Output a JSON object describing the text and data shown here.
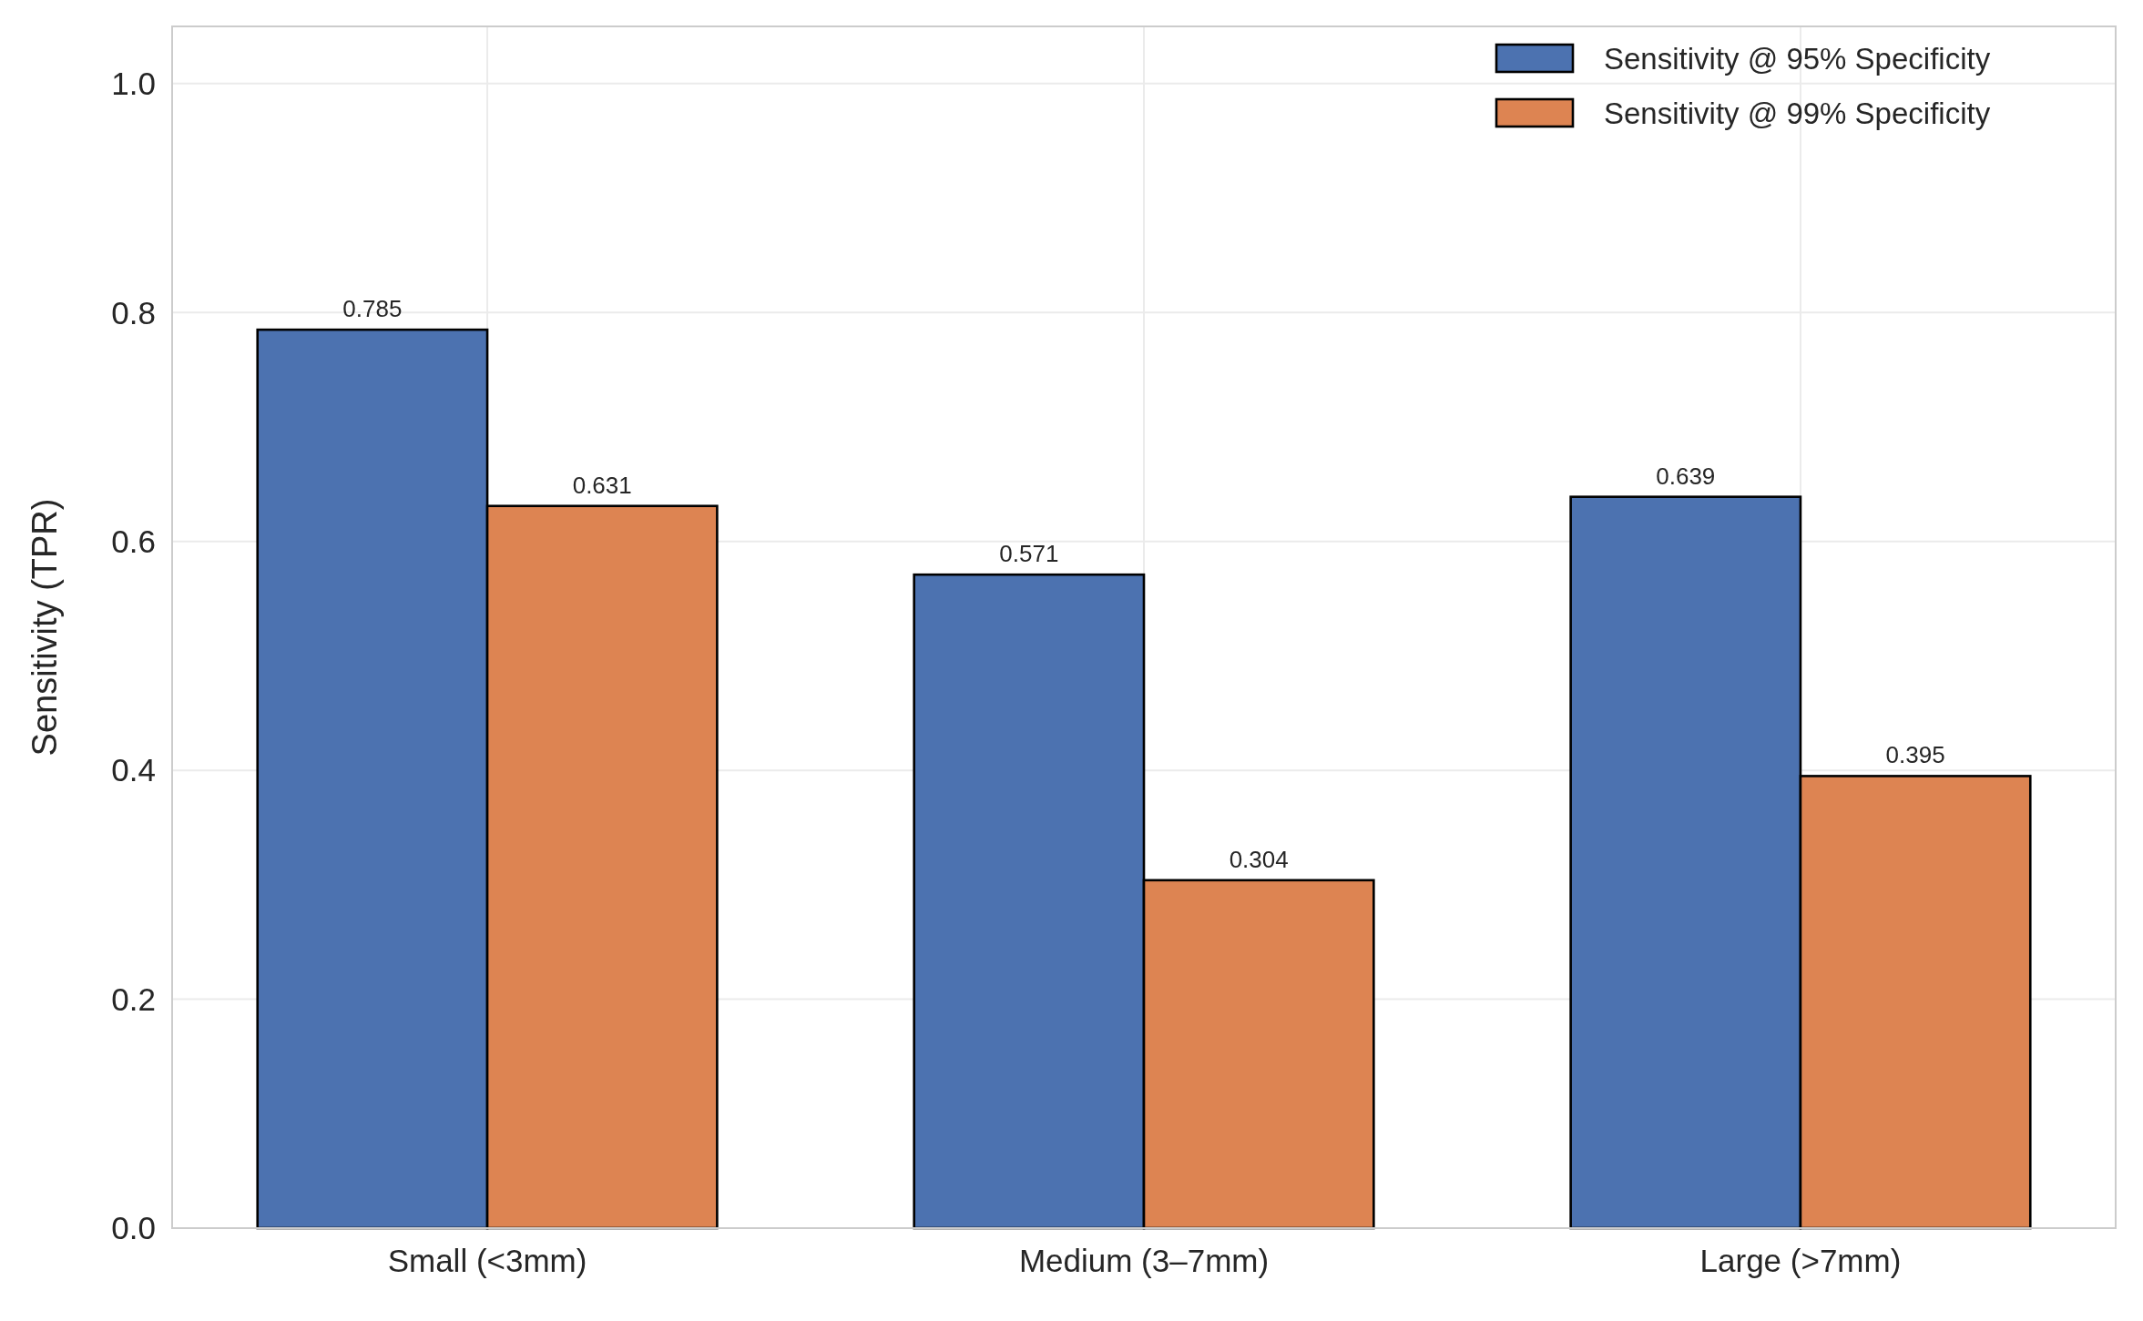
{
  "chart_data": {
    "type": "bar",
    "ylabel": "Sensitivity (TPR)",
    "categories": [
      "Small (<3mm)",
      "Medium (3–7mm)",
      "Large (>7mm)"
    ],
    "series": [
      {
        "name": "Sensitivity @ 95% Specificity",
        "color": "#4c72b0",
        "values": [
          0.785,
          0.571,
          0.639
        ]
      },
      {
        "name": "Sensitivity @ 99% Specificity",
        "color": "#dd8452",
        "values": [
          0.631,
          0.304,
          0.395
        ]
      }
    ],
    "ylim": [
      0,
      1.05
    ],
    "yticks": [
      {
        "value": 0,
        "label": "0.0"
      },
      0.2,
      0.4,
      0.6,
      0.8,
      {
        "value": 1,
        "label": "1.0"
      }
    ],
    "grid": true,
    "legend": "top right",
    "data_labels": true
  }
}
